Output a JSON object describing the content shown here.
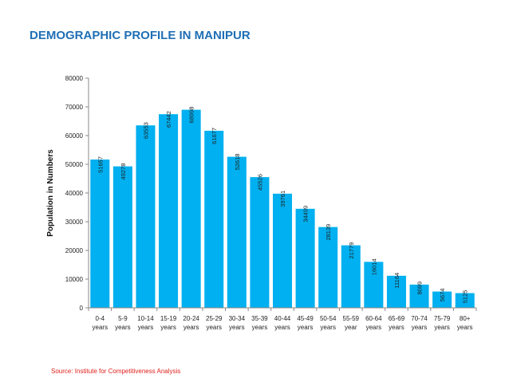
{
  "chart_data": {
    "type": "bar",
    "title": "DEMOGRAPHIC PROFILE IN MANIPUR",
    "ylabel": "Population in Numbers",
    "xlabel": "",
    "ylim": [
      0,
      80000
    ],
    "yticks": [
      0,
      10000,
      20000,
      30000,
      40000,
      50000,
      60000,
      70000,
      80000
    ],
    "grid": false,
    "bar_color": "#00b0f0",
    "categories": [
      [
        "0-4",
        "years"
      ],
      [
        "5-9",
        "years"
      ],
      [
        "10-14",
        "years"
      ],
      [
        "15-19",
        "years"
      ],
      [
        "20-24",
        "years"
      ],
      [
        "25-29",
        "years"
      ],
      [
        "30-34",
        "years"
      ],
      [
        "35-39",
        "years"
      ],
      [
        "40-44",
        "years"
      ],
      [
        "45-49",
        "years"
      ],
      [
        "50-54",
        "years"
      ],
      [
        "55-59",
        "year"
      ],
      [
        "60-64",
        "years"
      ],
      [
        "65-69",
        "years"
      ],
      [
        "70-74",
        "years"
      ],
      [
        "75-79",
        "years"
      ],
      [
        "80+",
        "years"
      ]
    ],
    "values": [
      51657,
      49278,
      63553,
      67442,
      68998,
      61677,
      52618,
      45526,
      39761,
      34499,
      28139,
      21779,
      16014,
      11164,
      8099,
      5674,
      5125
    ]
  },
  "source": "Source: Institute for Competitiveness Analysis",
  "colors": {
    "title": "#1f6fb5",
    "source": "#e0211b"
  }
}
